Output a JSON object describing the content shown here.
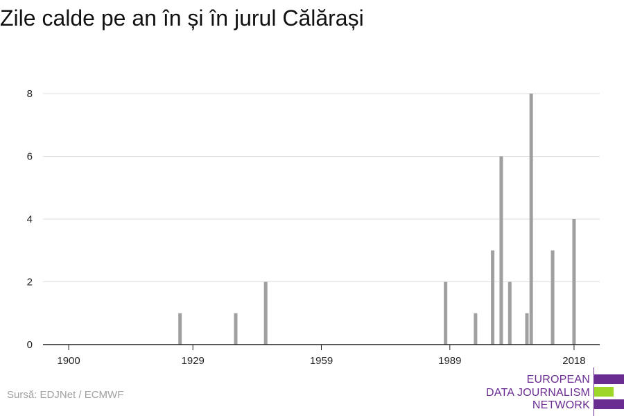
{
  "header": {
    "title": "Zile calde pe an în și în jurul Călărași"
  },
  "footer": {
    "source": "Sursă: EDJNet / ECMWF",
    "logo_lines": [
      "EUROPEAN",
      "DATA JOURNALISM",
      "NETWORK"
    ],
    "logo_colors": {
      "purple": "#6a2c91",
      "green": "#9ed62a"
    }
  },
  "chart_data": {
    "type": "bar",
    "title": "Zile calde pe an în și în jurul Călărași",
    "xlabel": "",
    "ylabel": "",
    "xlim": [
      1894,
      2024
    ],
    "ylim": [
      0,
      8
    ],
    "x_ticks": [
      1900,
      1929,
      1959,
      1989,
      2018
    ],
    "y_ticks": [
      0,
      2,
      4,
      6,
      8
    ],
    "grid": true,
    "bar_color": "#a0a0a0",
    "x": [
      1926,
      1939,
      1946,
      1988,
      1995,
      1999,
      2001,
      2003,
      2007,
      2008,
      2013,
      2018
    ],
    "values": [
      1,
      1,
      2,
      2,
      1,
      3,
      6,
      2,
      1,
      8,
      3,
      4
    ]
  }
}
